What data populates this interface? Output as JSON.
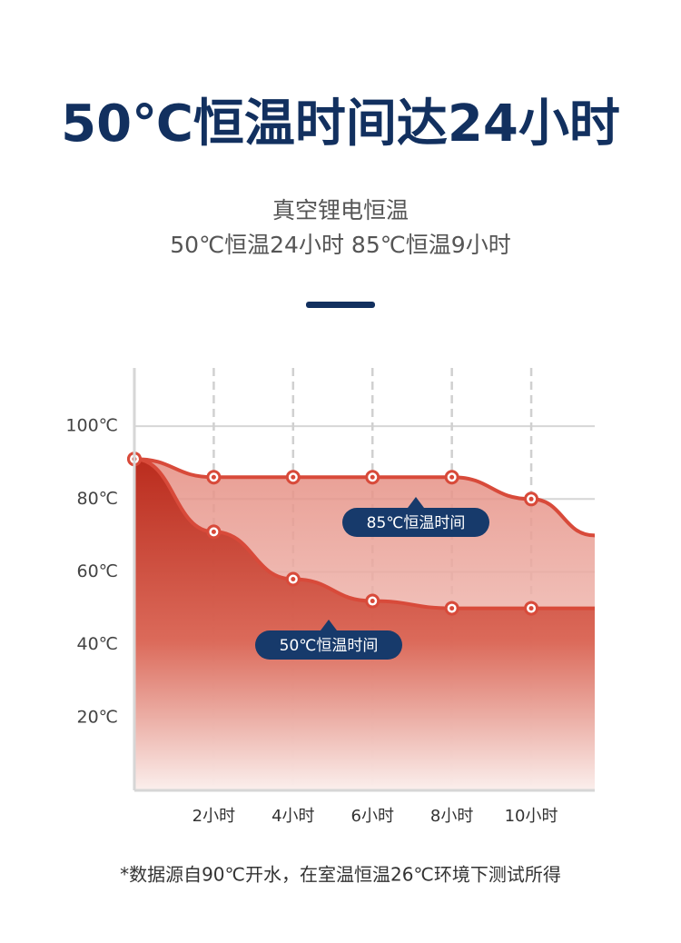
{
  "chart_data": {
    "type": "area",
    "title": "50℃恒温时间达24小时",
    "subtitle": [
      "真空锂电恒温",
      "50℃恒温24小时 85℃恒温9小时"
    ],
    "x": [
      0,
      2,
      4,
      6,
      8,
      10,
      11.6
    ],
    "series": [
      {
        "name": "85℃恒温时间",
        "color": "#d84a3a",
        "values": [
          91,
          86,
          86,
          86,
          86,
          80,
          70
        ]
      },
      {
        "name": "50℃恒温时间",
        "color": "#d84a3a",
        "values": [
          91,
          71,
          58,
          52,
          50,
          50,
          50
        ]
      }
    ],
    "xlim": [
      0,
      11.6
    ],
    "xticks": [
      {
        "value": 2,
        "label": "2小时"
      },
      {
        "value": 4,
        "label": "4小时"
      },
      {
        "value": 6,
        "label": "6小时"
      },
      {
        "value": 8,
        "label": "8小时"
      },
      {
        "value": 10,
        "label": "10小时"
      }
    ],
    "ylim": [
      0,
      116
    ],
    "yticks": [
      {
        "value": 20,
        "label": "20℃"
      },
      {
        "value": 40,
        "label": "40℃"
      },
      {
        "value": 60,
        "label": "60℃"
      },
      {
        "value": 80,
        "label": "80℃"
      },
      {
        "value": 100,
        "label": "100℃"
      }
    ],
    "grid": true,
    "footnote": "*数据源自90℃开水，在室温恒温26℃环境下测试所得"
  }
}
